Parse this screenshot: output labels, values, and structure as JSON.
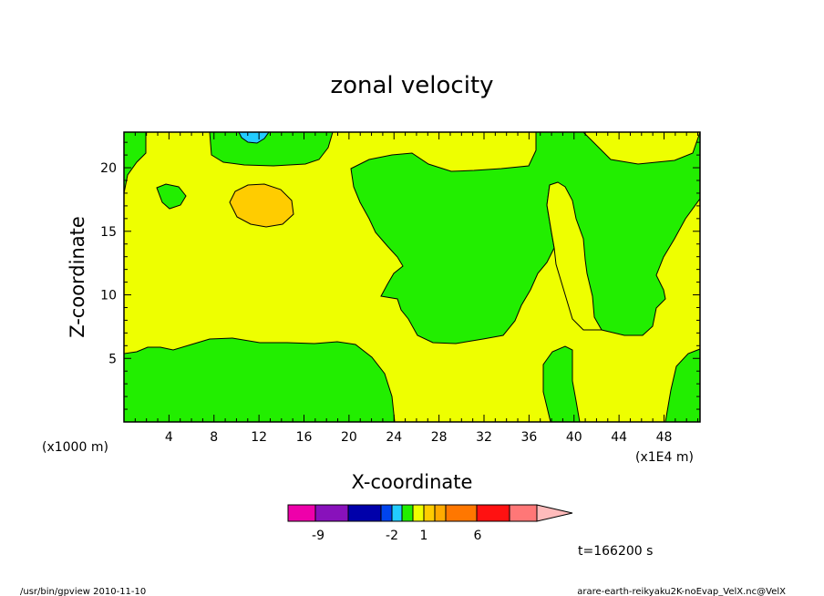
{
  "chart_data": {
    "type": "contour",
    "title": "zonal velocity",
    "xlabel": "X-coordinate",
    "ylabel": "Z-coordinate",
    "x_unit": "(x1000 m)",
    "x_scale_note": "(x1E4 m)",
    "xlim": [
      0,
      51.2
    ],
    "ylim": [
      0,
      22.8
    ],
    "x_ticks": [
      4,
      8,
      12,
      16,
      20,
      24,
      28,
      32,
      36,
      40,
      44,
      48
    ],
    "y_ticks": [
      5,
      10,
      15,
      20
    ],
    "background_level": "0 to 1 (yellow)",
    "regions": [
      {
        "level": "-1 to 0",
        "color": "#22ee00",
        "note": "lower-left band, z 0 to ~6.5, x 0 to ~24"
      },
      {
        "level": "-1 to 0",
        "color": "#22ee00",
        "note": "top band, x ~7 to ~18, z ~20.5 to 22.8"
      },
      {
        "level": "-1 to 0",
        "color": "#22ee00",
        "note": "large region x ~20 to ~36, z ~6 to ~21"
      },
      {
        "level": "-1 to 0",
        "color": "#22ee00",
        "note": "right region x ~41 to ~51, z ~7.5 to 22.8"
      },
      {
        "level": "-1 to 0",
        "color": "#22ee00",
        "note": "bottom region x ~37 to ~40, z 0 to ~6"
      },
      {
        "level": "-1 to 0",
        "color": "#22ee00",
        "note": "bottom-right corner x ~48 to 51.2, z 0 to ~5.5"
      },
      {
        "level": "-1 to 0",
        "color": "#22ee00",
        "note": "small patch near x ~4, z ~18"
      },
      {
        "level": "-1 to 0",
        "color": "#22ee00",
        "note": "top-left corner x 0 to ~2, z ~19 to 22.8"
      },
      {
        "level": "1 to 2",
        "color": "#ffcc00",
        "note": "blob near x ~12, z ~17.5"
      },
      {
        "level": "-2 to -1",
        "color": "#22ccff",
        "note": "small patch near x ~12, z ~22.5"
      }
    ],
    "colorbar": {
      "colors": [
        "#ee00aa",
        "#8811bb",
        "#0000aa",
        "#0044ee",
        "#22ccff",
        "#22ee00",
        "#eeff00",
        "#ffcc00",
        "#ffaa00",
        "#ff7700",
        "#ff1111",
        "#ff7777",
        "#ffbbbb"
      ],
      "labels": [
        "-9",
        "-2",
        "1",
        "6"
      ]
    },
    "time_label": "t=166200 s"
  },
  "footer": {
    "left": "/usr/bin/gpview   2010-11-10",
    "right": "arare-earth-reikyaku2K-noEvap_VelX.nc@VelX"
  }
}
